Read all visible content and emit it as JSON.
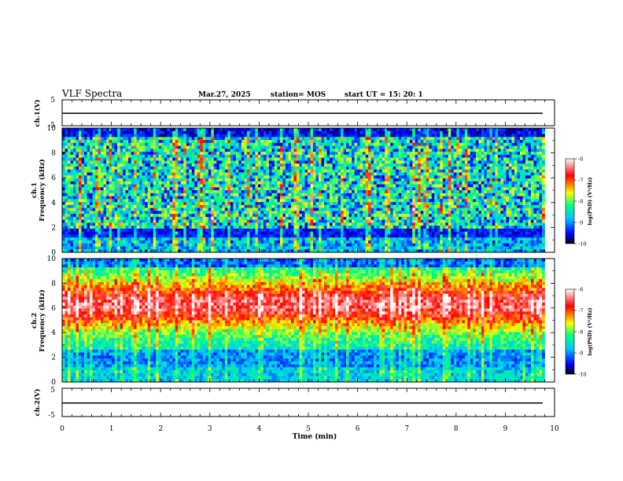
{
  "header": {
    "title": "VLF Spectra",
    "date": "Mar.27, 2025",
    "station": "station= MOS",
    "start_ut": "start  UT =   15: 20: 1"
  },
  "chart_data": [
    {
      "type": "line",
      "name": "ch1-voltage",
      "ylabel": "ch.1(V)",
      "ylim": [
        -5,
        5
      ],
      "ytick_labels": [
        "5",
        "-5"
      ],
      "xlim": [
        0,
        10
      ],
      "level": -0.2
    },
    {
      "type": "heatmap",
      "name": "ch1-spectrogram",
      "ylabel_lines": [
        "ch.1",
        "Frequency (kHz)"
      ],
      "ylim": [
        0,
        10
      ],
      "ytick_labels": [
        "0",
        "2",
        "4",
        "6",
        "8",
        "10"
      ],
      "xlim": [
        0,
        9.8
      ],
      "colorbar": {
        "range": [
          -10,
          -6
        ],
        "tick_labels": [
          "-6",
          "-7",
          "-8",
          "-9",
          "-10"
        ],
        "label": "log(PSD) (V²/Hz)"
      },
      "description_levels": {
        "background": -9.6,
        "peak": -7.5
      }
    },
    {
      "type": "heatmap",
      "name": "ch2-spectrogram",
      "ylabel_lines": [
        "ch.2",
        "Frequency (kHz)"
      ],
      "ylim": [
        0,
        10
      ],
      "ytick_labels": [
        "0",
        "2",
        "4",
        "6",
        "8",
        "10"
      ],
      "xlim": [
        0,
        9.8
      ],
      "colorbar": {
        "range": [
          -10,
          -6
        ],
        "tick_labels": [
          "-6",
          "-7",
          "-8",
          "-9",
          "-10"
        ],
        "label": "log(PSD) (V²/Hz)"
      },
      "description_levels": {
        "background": -8.5,
        "peak": -6.7
      }
    },
    {
      "type": "line",
      "name": "ch2-voltage",
      "ylabel": "ch.2(V)",
      "ylim": [
        -5,
        5
      ],
      "ytick_labels": [
        "5",
        "-5"
      ],
      "xlim": [
        0,
        10
      ],
      "level": -0.2
    }
  ],
  "x_axis": {
    "label": "Time (min)",
    "range": [
      0,
      10
    ],
    "tick_labels": [
      "0",
      "1",
      "2",
      "3",
      "4",
      "5",
      "6",
      "7",
      "8",
      "9",
      "10"
    ]
  },
  "colors": {
    "colormap": [
      "#000000",
      "#0000ff",
      "#00c8ff",
      "#00ff80",
      "#ffff00",
      "#ff0000",
      "#ffffff"
    ]
  }
}
